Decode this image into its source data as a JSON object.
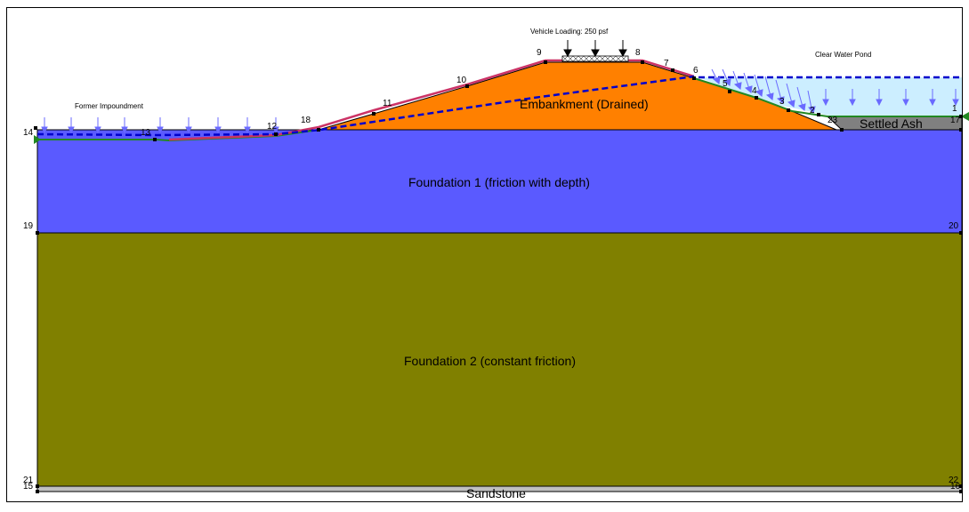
{
  "annotations": {
    "vehicle_loading": "Vehicle Loading: 250 psf",
    "clear_water_pond": "Clear Water Pond",
    "former_impoundment": "Former Impoundment"
  },
  "regions": {
    "embankment": "Embankment (Drained)",
    "settled_ash": "Settled Ash",
    "foundation1": "Foundation 1 (friction with depth)",
    "foundation2": "Foundation 2 (constant friction)",
    "sandstone": "Sandstone"
  },
  "points": {
    "p1": "1",
    "p2": "2",
    "p3": "3",
    "p4": "4",
    "p5": "5",
    "p6": "6",
    "p7": "7",
    "p8": "8",
    "p9": "9",
    "p10": "10",
    "p11": "11",
    "p12": "12",
    "p13": "13",
    "p14": "14",
    "p15": "15",
    "p16": "16",
    "p17": "17",
    "p18": "18",
    "p19": "19",
    "p20": "20",
    "p21": "21",
    "p22": "22",
    "p23": "23"
  },
  "colors": {
    "embankment": "#ff8000",
    "settled_ash": "#808080",
    "foundation1": "#5a5aff",
    "foundation2": "#808000",
    "sandstone": "#c0c0c0",
    "pond_water": "#cceeff",
    "piezometric_line": "#0000cc",
    "slip_surface": "#cc3366",
    "ground_line": "#228822",
    "load_arrow": "#6a6aff"
  }
}
